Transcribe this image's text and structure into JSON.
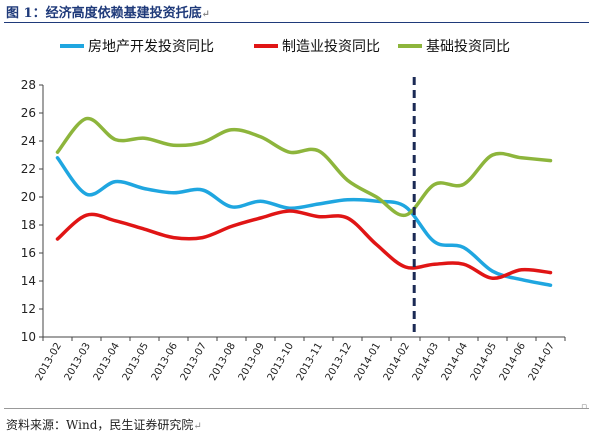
{
  "figure": {
    "title": "图 1：经济高度依赖基建投资托底",
    "return_mark": "↵",
    "source": "资料来源：Wind，民生证券研究院",
    "end_mark": "↵"
  },
  "colors": {
    "series_0": "#1fa6e0",
    "series_1": "#e01515",
    "series_2": "#8db53c",
    "dashed_line": "#1b2a55",
    "axis": "#444444"
  },
  "chart_data": {
    "type": "line",
    "categories": [
      "2013-02",
      "2013-03",
      "2013-04",
      "2013-05",
      "2013-06",
      "2013-07",
      "2013-08",
      "2013-09",
      "2013-10",
      "2013-11",
      "2013-12",
      "2014-01",
      "2014-02",
      "2014-03",
      "2014-04",
      "2014-05",
      "2014-06",
      "2014-07"
    ],
    "series": [
      {
        "name": "房地产开发投资同比",
        "values": [
          22.8,
          20.2,
          21.1,
          20.6,
          20.3,
          20.5,
          19.3,
          19.7,
          19.2,
          19.5,
          19.8,
          19.7,
          19.3,
          16.8,
          16.4,
          14.7,
          14.1,
          13.7
        ]
      },
      {
        "name": "制造业投资同比",
        "values": [
          17.0,
          18.7,
          18.3,
          17.7,
          17.1,
          17.1,
          17.9,
          18.5,
          19.0,
          18.6,
          18.5,
          16.6,
          15.0,
          15.2,
          15.2,
          14.2,
          14.8,
          14.6
        ]
      },
      {
        "name": "基础投资同比",
        "values": [
          23.2,
          25.6,
          24.1,
          24.2,
          23.7,
          23.9,
          24.8,
          24.3,
          23.2,
          23.3,
          21.2,
          20.0,
          18.7,
          20.9,
          20.9,
          23.0,
          22.8,
          22.6
        ]
      }
    ],
    "y_ticks": [
      "10",
      "12",
      "14",
      "16",
      "18",
      "20",
      "22",
      "24",
      "26",
      "28"
    ],
    "ylim": [
      10,
      28
    ],
    "xlabel": "",
    "ylabel": "",
    "grid": false,
    "legend_position": "top",
    "vertical_marker": {
      "after_category": "2014-02",
      "style": "dashed"
    }
  }
}
